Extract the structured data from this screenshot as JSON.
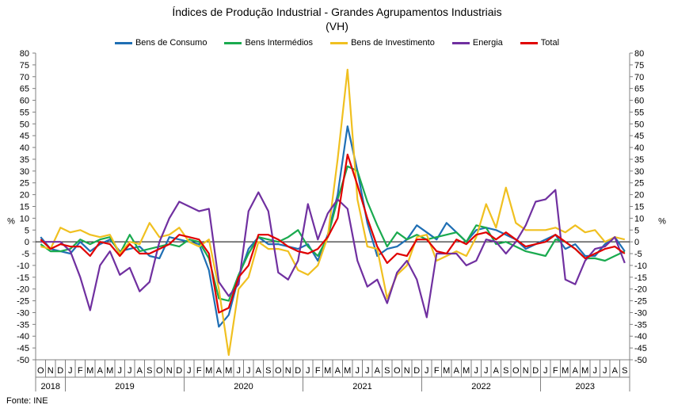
{
  "title": "Índices de Produção Industrial - Grandes Agrupamentos Industriais",
  "subtitle": "(VH)",
  "source": "Fonte: INE",
  "chart_data": {
    "type": "line",
    "ylabel_left": "%",
    "ylabel_right": "%",
    "ylim": [
      -50,
      80
    ],
    "yticks": [
      80,
      75,
      70,
      65,
      60,
      55,
      50,
      45,
      40,
      35,
      30,
      25,
      20,
      15,
      10,
      5,
      0,
      -5,
      -10,
      -15,
      -20,
      -25,
      -30,
      -35,
      -40,
      -45,
      -50
    ],
    "grid": false,
    "legend": "top",
    "x": [
      "O",
      "N",
      "D",
      "J",
      "F",
      "M",
      "A",
      "M",
      "J",
      "J",
      "A",
      "S",
      "O",
      "N",
      "D",
      "J",
      "F",
      "M",
      "A",
      "M",
      "J",
      "J",
      "A",
      "S",
      "O",
      "N",
      "D",
      "J",
      "F",
      "M",
      "A",
      "M",
      "J",
      "J",
      "A",
      "S",
      "O",
      "N",
      "D",
      "J",
      "F",
      "M",
      "A",
      "M",
      "J",
      "J",
      "A",
      "S",
      "O",
      "N",
      "D",
      "J",
      "F",
      "M",
      "A",
      "M",
      "J",
      "J",
      "A",
      "S"
    ],
    "years": [
      {
        "label": "2018",
        "start": 0,
        "count": 3
      },
      {
        "label": "2019",
        "start": 3,
        "count": 12
      },
      {
        "label": "2020",
        "start": 15,
        "count": 12
      },
      {
        "label": "2021",
        "start": 27,
        "count": 12
      },
      {
        "label": "2022",
        "start": 39,
        "count": 12
      },
      {
        "label": "2023",
        "start": 51,
        "count": 9
      }
    ],
    "series": [
      {
        "name": "Bens de Consumo",
        "color": "#1f6fb4",
        "values": [
          2,
          -3,
          -4,
          -5,
          0,
          -4,
          -1,
          1,
          -4,
          -3,
          -2,
          -6,
          -7,
          2,
          1,
          0,
          -1,
          -12,
          -36,
          -31,
          -15,
          -3,
          2,
          -1,
          -1,
          -2,
          -3,
          -1,
          -8,
          3,
          20,
          49,
          30,
          8,
          -6,
          -3,
          -2,
          1,
          7,
          4,
          1,
          8,
          4,
          0,
          5,
          6,
          5,
          3,
          1,
          -3,
          -1,
          1,
          3,
          -3,
          -1,
          -6,
          -6,
          -1,
          2,
          -4
        ]
      },
      {
        "name": "Bens Intermédios",
        "color": "#1aaa4f",
        "values": [
          -1,
          -4,
          -4,
          -3,
          1,
          -1,
          1,
          2,
          -5,
          3,
          -4,
          -3,
          -2,
          -1,
          -2,
          1,
          0,
          -7,
          -24,
          -25,
          -14,
          -5,
          2,
          1,
          0,
          2,
          5,
          -2,
          -6,
          2,
          18,
          32,
          30,
          17,
          7,
          -2,
          4,
          1,
          3,
          1,
          2,
          3,
          4,
          0,
          7,
          6,
          -1,
          0,
          -2,
          -4,
          -5,
          -6,
          1,
          0,
          -3,
          -7,
          -7,
          -8,
          -6,
          -4
        ]
      },
      {
        "name": "Bens de Investimento",
        "color": "#f0c020",
        "values": [
          -2,
          -3,
          6,
          4,
          5,
          3,
          2,
          3,
          -5,
          0,
          -1,
          8,
          2,
          3,
          6,
          0,
          -2,
          1,
          -20,
          -48,
          -20,
          -15,
          0,
          -3,
          -3,
          -4,
          -12,
          -14,
          -10,
          2,
          35,
          73,
          18,
          -2,
          -3,
          -24,
          -14,
          -10,
          2,
          3,
          -8,
          -6,
          -4,
          -6,
          2,
          16,
          6,
          23,
          8,
          5,
          5,
          5,
          6,
          4,
          7,
          4,
          5,
          0,
          2,
          1
        ]
      },
      {
        "name": "Energia",
        "color": "#7030a0",
        "values": [
          0,
          0,
          0,
          -4,
          -15,
          -29,
          -10,
          -4,
          -14,
          -11,
          -21,
          -17,
          0,
          10,
          17,
          15,
          13,
          14,
          -17,
          -23,
          -18,
          13,
          21,
          13,
          -13,
          -16,
          -8,
          16,
          1,
          12,
          18,
          14,
          -8,
          -19,
          -16,
          -26,
          -13,
          -8,
          -16,
          -32,
          -5,
          -5,
          -5,
          -10,
          -8,
          1,
          0,
          -5,
          0,
          7,
          17,
          18,
          22,
          -16,
          -18,
          -8,
          -3,
          -2,
          2,
          -9
        ]
      },
      {
        "name": "Total",
        "color": "#e00000",
        "values": [
          1,
          -3,
          -1,
          -2,
          -2,
          -6,
          0,
          -1,
          -6,
          -1,
          -5,
          -5,
          -3,
          -1,
          3,
          2,
          1,
          -5,
          -30,
          -28,
          -15,
          -10,
          3,
          3,
          1,
          -2,
          -4,
          -5,
          -3,
          2,
          10,
          37,
          24,
          10,
          -2,
          -9,
          -5,
          -6,
          1,
          1,
          -4,
          -5,
          1,
          -1,
          3,
          4,
          1,
          4,
          1,
          -2,
          -1,
          0,
          3,
          0,
          -3,
          -7,
          -5,
          -3,
          -2,
          -5
        ]
      }
    ]
  }
}
